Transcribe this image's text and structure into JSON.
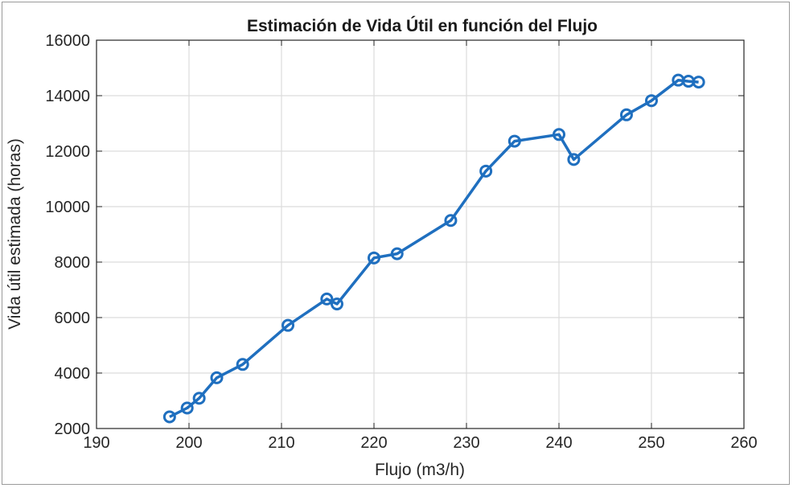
{
  "chart_data": {
    "type": "line",
    "title": "Estimación de Vida Útil en función del Flujo",
    "xlabel": "Flujo (m3/h)",
    "ylabel": "Vida útil estimada (horas)",
    "xlim": [
      190,
      260
    ],
    "ylim": [
      2000,
      16000
    ],
    "xticks": [
      "190",
      "200",
      "210",
      "220",
      "230",
      "240",
      "250",
      "260"
    ],
    "yticks": [
      "2000",
      "4000",
      "6000",
      "8000",
      "10000",
      "12000",
      "14000",
      "16000"
    ],
    "grid": true,
    "line_color": "#1f6fbf",
    "marker": "circle",
    "series": [
      {
        "x": [
          197.9,
          199.8,
          201.1,
          203.0,
          205.8,
          210.7,
          214.9,
          216.0,
          220.0,
          222.5,
          228.3,
          232.1,
          235.2,
          240.0,
          241.6,
          247.3,
          250.0,
          252.9,
          254.0,
          255.1
        ],
        "y": [
          2420,
          2740,
          3090,
          3830,
          4310,
          5720,
          6670,
          6490,
          8150,
          8300,
          9500,
          11280,
          12360,
          12600,
          11700,
          13310,
          13820,
          14560,
          14520,
          14490
        ]
      }
    ]
  }
}
